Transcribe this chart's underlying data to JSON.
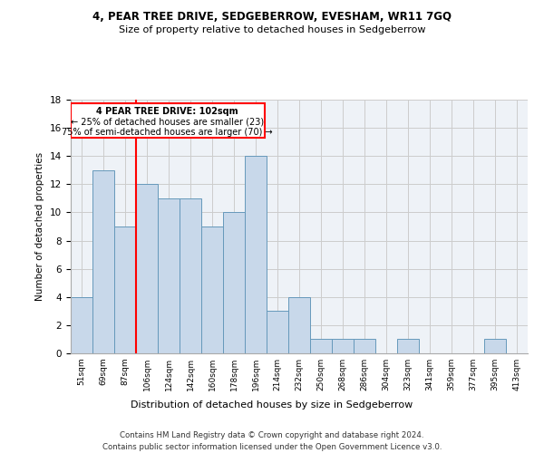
{
  "title1": "4, PEAR TREE DRIVE, SEDGEBERROW, EVESHAM, WR11 7GQ",
  "title2": "Size of property relative to detached houses in Sedgeberrow",
  "xlabel": "Distribution of detached houses by size in Sedgeberrow",
  "ylabel": "Number of detached properties",
  "categories": [
    "51sqm",
    "69sqm",
    "87sqm",
    "106sqm",
    "124sqm",
    "142sqm",
    "160sqm",
    "178sqm",
    "196sqm",
    "214sqm",
    "232sqm",
    "250sqm",
    "268sqm",
    "286sqm",
    "304sqm",
    "323sqm",
    "341sqm",
    "359sqm",
    "377sqm",
    "395sqm",
    "413sqm"
  ],
  "values": [
    4,
    13,
    9,
    12,
    11,
    11,
    9,
    10,
    14,
    3,
    4,
    1,
    1,
    1,
    0,
    1,
    0,
    0,
    0,
    1,
    0
  ],
  "bar_color": "#c8d8ea",
  "bar_edge_color": "#6699bb",
  "red_line_x": 2.5,
  "annotation_text1": "4 PEAR TREE DRIVE: 102sqm",
  "annotation_text2": "← 25% of detached houses are smaller (23)",
  "annotation_text3": "75% of semi-detached houses are larger (70) →",
  "ylim": [
    0,
    18
  ],
  "yticks": [
    0,
    2,
    4,
    6,
    8,
    10,
    12,
    14,
    16,
    18
  ],
  "footnote1": "Contains HM Land Registry data © Crown copyright and database right 2024.",
  "footnote2": "Contains public sector information licensed under the Open Government Licence v3.0."
}
